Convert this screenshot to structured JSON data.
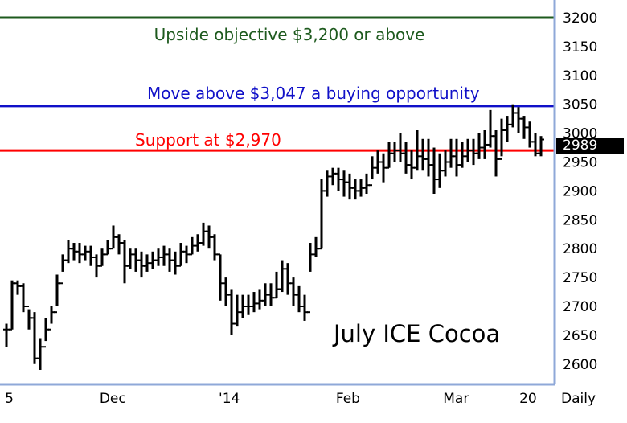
{
  "chart_data": {
    "type": "ohlc",
    "title": "July ICE Cocoa",
    "ylim": [
      2575,
      3225
    ],
    "y_ticks": [
      2600,
      2650,
      2700,
      2750,
      2800,
      2850,
      2900,
      2950,
      3000,
      3050,
      3100,
      3150,
      3200
    ],
    "x_ticks": [
      {
        "label": "5",
        "index": 0.5
      },
      {
        "label": "Dec",
        "index": 18.9
      },
      {
        "label": "'14",
        "index": 39.6
      },
      {
        "label": "Feb",
        "index": 60.7
      },
      {
        "label": "Mar",
        "index": 79.9
      },
      {
        "label": "20",
        "index": 92.7
      }
    ],
    "period_label": "Daily",
    "last_price": {
      "value": 2989,
      "label": "2989"
    },
    "levels": [
      {
        "value": 3200,
        "color": "#1e5a1e",
        "label": "Upside objective $3,200 or above"
      },
      {
        "value": 3047,
        "color": "#1010c8",
        "label": "Move above $3,047 a buying opportunity"
      },
      {
        "value": 2970,
        "color": "#ff0000",
        "label": "Support at $2,970"
      }
    ],
    "close": [
      2660,
      2740,
      2735,
      2700,
      2680,
      2610,
      2630,
      2660,
      2690,
      2740,
      2780,
      2800,
      2795,
      2790,
      2795,
      2785,
      2770,
      2790,
      2800,
      2820,
      2810,
      2770,
      2790,
      2780,
      2770,
      2775,
      2780,
      2785,
      2790,
      2780,
      2770,
      2795,
      2790,
      2805,
      2810,
      2830,
      2820,
      2790,
      2740,
      2720,
      2670,
      2690,
      2700,
      2700,
      2705,
      2710,
      2720,
      2715,
      2730,
      2765,
      2740,
      2720,
      2700,
      2690,
      2790,
      2800,
      2900,
      2925,
      2930,
      2920,
      2915,
      2905,
      2900,
      2905,
      2910,
      2940,
      2950,
      2940,
      2965,
      2970,
      2965,
      2945,
      2940,
      2960,
      2955,
      2945,
      2920,
      2935,
      2950,
      2960,
      2945,
      2960,
      2970,
      2965,
      2975,
      2980,
      2995,
      2955,
      3005,
      3015,
      3035,
      3025,
      3010,
      2985,
      2965,
      2989
    ],
    "high": [
      2670,
      2745,
      2745,
      2740,
      2695,
      2690,
      2645,
      2680,
      2700,
      2755,
      2790,
      2815,
      2810,
      2810,
      2805,
      2805,
      2790,
      2800,
      2815,
      2840,
      2825,
      2815,
      2800,
      2800,
      2795,
      2790,
      2795,
      2800,
      2805,
      2800,
      2795,
      2810,
      2805,
      2820,
      2825,
      2845,
      2840,
      2825,
      2790,
      2750,
      2730,
      2720,
      2720,
      2720,
      2725,
      2730,
      2740,
      2740,
      2760,
      2780,
      2775,
      2750,
      2735,
      2720,
      2810,
      2820,
      2920,
      2935,
      2940,
      2940,
      2935,
      2930,
      2920,
      2920,
      2930,
      2960,
      2970,
      2965,
      2985,
      2985,
      3000,
      2985,
      2970,
      3005,
      2990,
      2990,
      2975,
      2965,
      2970,
      2990,
      2990,
      2985,
      2990,
      2990,
      3000,
      3005,
      3040,
      3005,
      3025,
      3030,
      3050,
      3045,
      3030,
      3020,
      3000,
      2995
    ],
    "low": [
      2630,
      2660,
      2720,
      2690,
      2660,
      2600,
      2590,
      2640,
      2670,
      2700,
      2760,
      2775,
      2780,
      2775,
      2780,
      2770,
      2750,
      2770,
      2790,
      2800,
      2790,
      2740,
      2765,
      2760,
      2750,
      2760,
      2765,
      2770,
      2770,
      2760,
      2755,
      2770,
      2775,
      2790,
      2795,
      2805,
      2800,
      2780,
      2710,
      2700,
      2650,
      2665,
      2680,
      2685,
      2690,
      2695,
      2700,
      2700,
      2715,
      2725,
      2720,
      2700,
      2690,
      2675,
      2760,
      2785,
      2800,
      2890,
      2910,
      2900,
      2890,
      2885,
      2885,
      2890,
      2895,
      2920,
      2930,
      2915,
      2940,
      2950,
      2950,
      2930,
      2920,
      2935,
      2935,
      2925,
      2895,
      2905,
      2925,
      2940,
      2925,
      2940,
      2950,
      2945,
      2955,
      2955,
      2975,
      2925,
      2960,
      2985,
      3010,
      3000,
      2990,
      2975,
      2960,
      2960
    ]
  }
}
